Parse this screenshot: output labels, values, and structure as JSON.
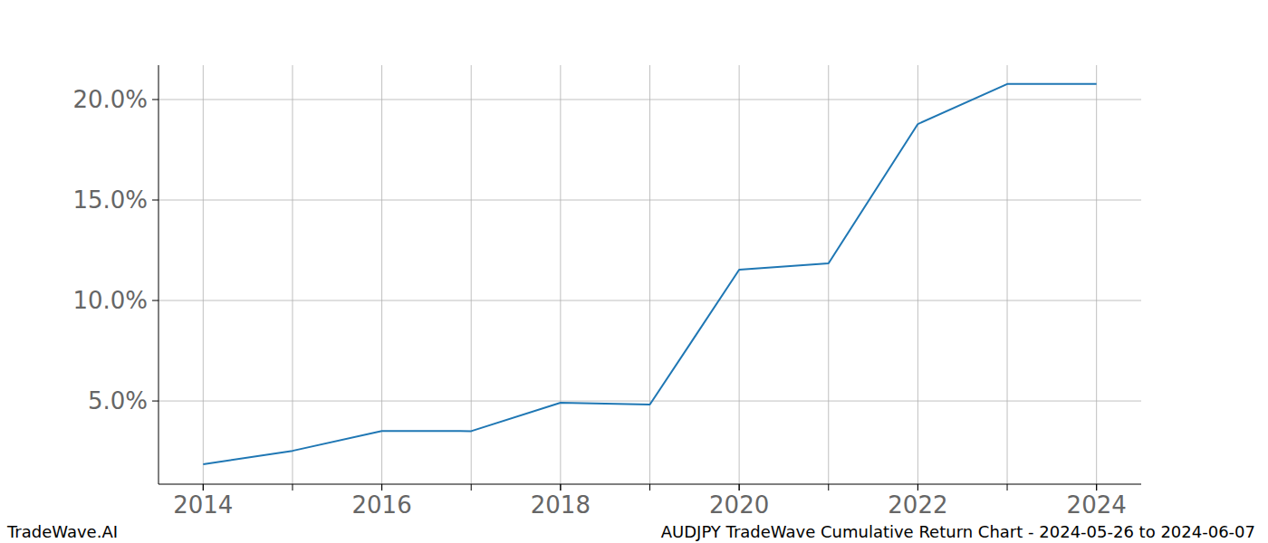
{
  "chart_data": {
    "type": "line",
    "title": "AUDJPY TradeWave Cumulative Return Chart - 2024-05-26 to 2024-06-07",
    "annotations": [
      "TradeWave.AI"
    ],
    "x": [
      2014,
      2015,
      2016,
      2017,
      2018,
      2019,
      2020,
      2021,
      2022,
      2023,
      2024
    ],
    "values": [
      1.85,
      2.52,
      3.51,
      3.5,
      4.91,
      4.82,
      11.53,
      11.85,
      18.78,
      20.77,
      20.77
    ],
    "color": "#1f77b4",
    "xlim": [
      2013.5,
      2024.5
    ],
    "ylim": [
      0.86,
      21.71
    ],
    "xticks": [
      2014,
      2016,
      2018,
      2020,
      2022,
      2024
    ],
    "yticks": [
      {
        "value": 5,
        "label": "5.0%"
      },
      {
        "value": 10,
        "label": "10.0%"
      },
      {
        "value": 15,
        "label": "15.0%"
      },
      {
        "value": 20,
        "label": "20.0%"
      }
    ],
    "grid": true
  }
}
